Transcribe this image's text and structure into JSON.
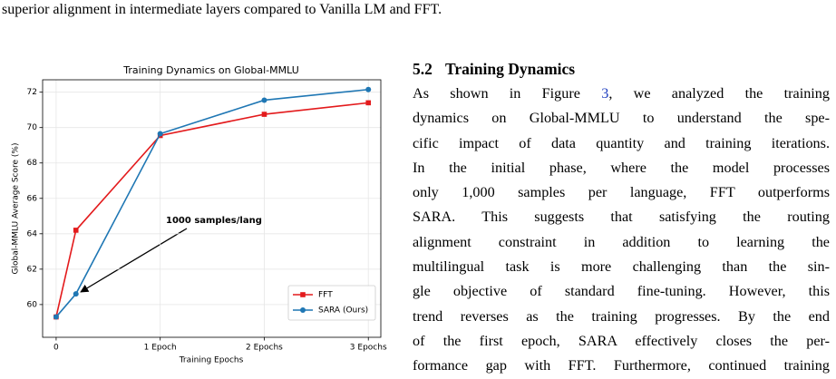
{
  "document": {
    "top_line": "superior alignment in intermediate layers compared to Vanilla LM and FFT.",
    "section": {
      "number": "5.2",
      "title": "Training Dynamics"
    },
    "paragraph": [
      [
        "As shown in Figure ",
        "3",
        ", we analyzed the training"
      ],
      "dynamics on Global-MMLU to understand the spe-",
      "cific impact of data quantity and training iterations.",
      "In the initial phase, where the model processes",
      "only 1,000 samples per language, FFT outperforms",
      "SARA. This suggests that satisfying the routing",
      "alignment constraint in addition to learning the",
      "multilingual task is more challenging than the sin-",
      "gle objective of standard fine-tuning. However, this",
      "trend reverses as the training progresses. By the end",
      "of the first epoch, SARA effectively closes the per-",
      "formance gap with FFT. Furthermore, continued training"
    ]
  },
  "chart_data": {
    "type": "line",
    "title": "Training Dynamics on Global-MMLU",
    "x_label": "Training Epochs",
    "y_label": "Global-MMLU Average Score (%)",
    "x": [
      0,
      0.19,
      1,
      2,
      3
    ],
    "series": [
      {
        "name": "FFT",
        "color": "#e31a1c",
        "marker": "square",
        "values": [
          59.3,
          64.2,
          69.55,
          70.75,
          71.4
        ]
      },
      {
        "name": "SARA (Ours)",
        "color": "#1f77b4",
        "marker": "circle",
        "values": [
          59.3,
          60.6,
          69.65,
          71.55,
          72.15
        ]
      }
    ],
    "xlim": [
      -0.13,
      3.12
    ],
    "xticks": [
      0,
      {
        "value": 1,
        "label": "1 Epoch"
      },
      {
        "value": 2,
        "label": "2 Epochs"
      },
      {
        "value": 3,
        "label": "3 Epochs"
      }
    ],
    "ylim": [
      58.15,
      72.7
    ],
    "yticks": [
      60,
      62,
      64,
      66,
      68,
      70,
      72
    ],
    "grid": true,
    "legend": "lower right",
    "annotation": "1000 samples/lang"
  }
}
